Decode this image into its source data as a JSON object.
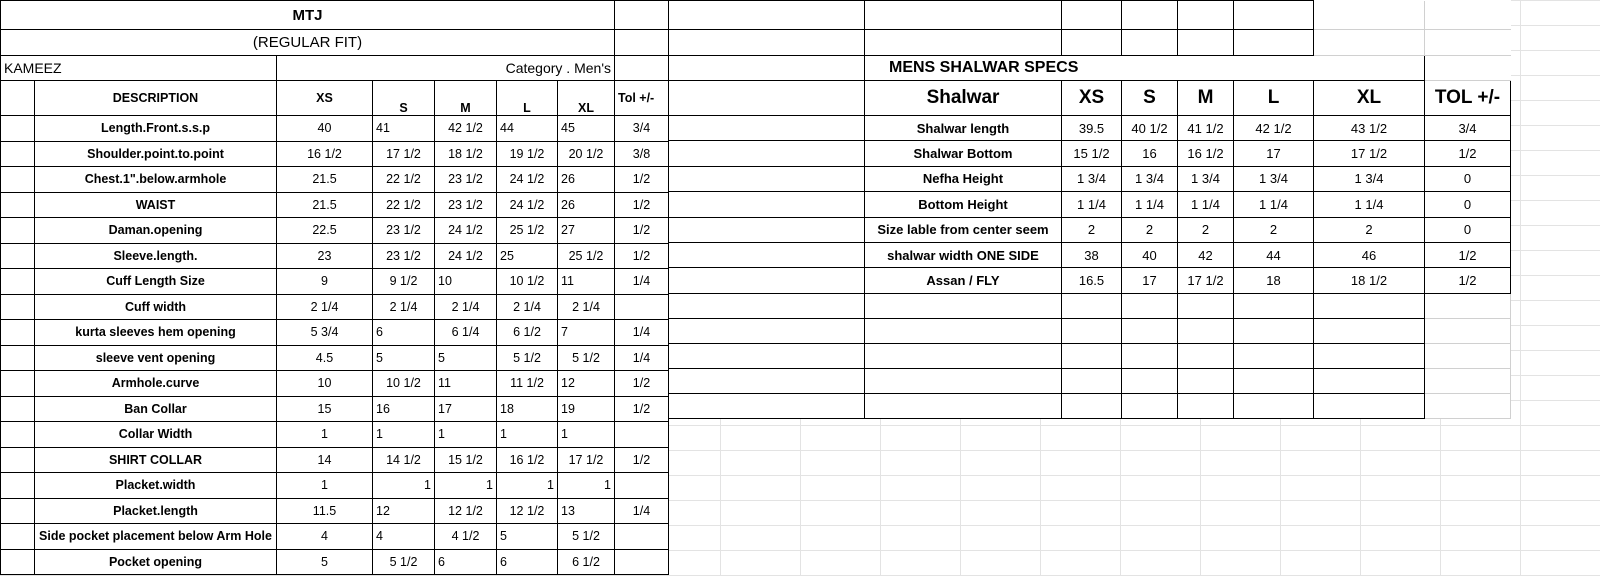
{
  "kameez": {
    "title": "MTJ",
    "subtitle": "(REGULAR FIT)",
    "section": "KAMEEZ",
    "category": "Category .  Men's",
    "headers": [
      "DESCRIPTION",
      "XS",
      "S",
      "M",
      "L",
      "XL",
      "Tol +/-"
    ],
    "rows": [
      [
        "Length.Front.s.s.p",
        "40",
        "41",
        "42 1/2",
        "44",
        "45",
        "3/4"
      ],
      [
        "Shoulder.point.to.point",
        "16 1/2",
        "17 1/2",
        "18 1/2",
        "19 1/2",
        "20 1/2",
        "3/8"
      ],
      [
        "Chest.1\".below.armhole",
        "21.5",
        "22 1/2",
        "23 1/2",
        "24 1/2",
        "26",
        "1/2"
      ],
      [
        "WAIST",
        "21.5",
        "22 1/2",
        "23 1/2",
        "24 1/2",
        "26",
        "1/2"
      ],
      [
        "Daman.opening",
        "22.5",
        "23 1/2",
        "24 1/2",
        "25 1/2",
        "27",
        "1/2"
      ],
      [
        "Sleeve.length.",
        "23",
        "23 1/2",
        "24 1/2",
        "25",
        "25 1/2",
        "1/2"
      ],
      [
        "Cuff Length Size",
        "9",
        "9 1/2",
        "10",
        "10 1/2",
        "11",
        "1/4"
      ],
      [
        "Cuff width",
        "2 1/4",
        "2 1/4",
        "2 1/4",
        "2 1/4",
        "2 1/4",
        ""
      ],
      [
        "kurta sleeves hem opening",
        "5 3/4",
        "6",
        "6 1/4",
        "6 1/2",
        "7",
        "1/4"
      ],
      [
        "sleeve vent opening",
        "4.5",
        "5",
        "5",
        "5 1/2",
        "5 1/2",
        "1/4"
      ],
      [
        "Armhole.curve",
        "10",
        "10 1/2",
        "11",
        "11 1/2",
        "12",
        "1/2"
      ],
      [
        "Ban Collar",
        "15",
        "16",
        "17",
        "18",
        "19",
        "1/2"
      ],
      [
        "Collar Width",
        "1",
        "1",
        "1",
        "1",
        "1",
        ""
      ],
      [
        "SHIRT COLLAR",
        "14",
        "14 1/2",
        "15 1/2",
        "16 1/2",
        "17 1/2",
        "1/2"
      ],
      [
        "Placket.width",
        "1",
        "1",
        "1",
        "1",
        "1",
        ""
      ],
      [
        "Placket.length",
        "11.5",
        "12",
        "12 1/2",
        "12 1/2",
        "13",
        "1/4"
      ],
      [
        "Side pocket placement below Arm Hole",
        "4",
        "4",
        "4 1/2",
        "5",
        "5 1/2",
        ""
      ],
      [
        "Pocket opening",
        "5",
        "5 1/2",
        "6",
        "6",
        "6 1/2",
        ""
      ]
    ]
  },
  "shalwar": {
    "title": "MENS SHALWAR SPECS",
    "headers": [
      "Shalwar",
      "XS",
      "S",
      "M",
      "L",
      "XL",
      "TOL +/-"
    ],
    "rows": [
      [
        "Shalwar length",
        "39.5",
        "40 1/2",
        "41 1/2",
        "42 1/2",
        "43 1/2",
        "3/4"
      ],
      [
        "Shalwar Bottom",
        "15 1/2",
        "16",
        "16 1/2",
        "17",
        "17 1/2",
        "1/2"
      ],
      [
        "Nefha Height",
        "1 3/4",
        "1 3/4",
        "1 3/4",
        "1 3/4",
        "1 3/4",
        "0"
      ],
      [
        "Bottom Height",
        "1 1/4",
        "1 1/4",
        "1 1/4",
        "1 1/4",
        "1 1/4",
        "0"
      ],
      [
        "Size lable from center seem",
        "2",
        "2",
        "2",
        "2",
        "2",
        "0"
      ],
      [
        "shalwar width ONE SIDE",
        "38",
        "40",
        "42",
        "44",
        "46",
        "1/2"
      ],
      [
        "Assan / FLY",
        "16.5",
        "17",
        "17 1/2",
        "18",
        "18 1/2",
        "1/2"
      ]
    ]
  }
}
